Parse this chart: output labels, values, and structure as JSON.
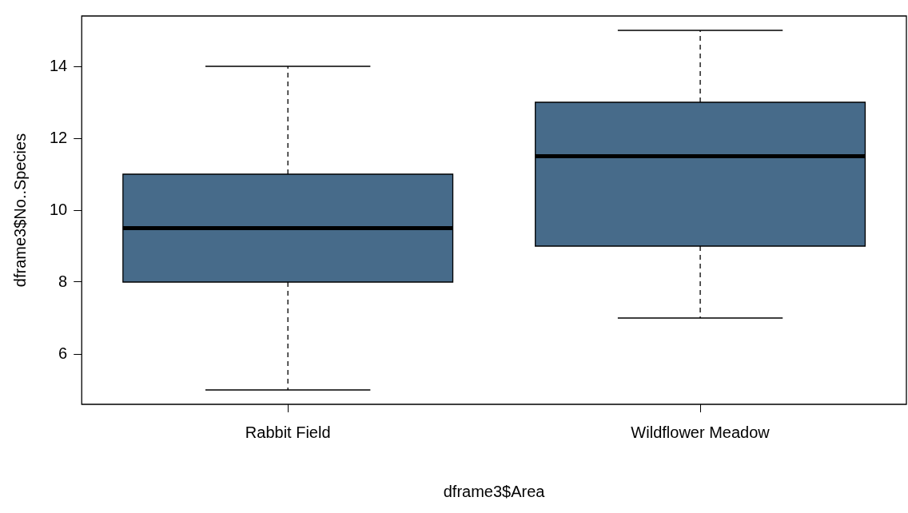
{
  "chart_data": {
    "type": "box",
    "xlabel": "dframe3$Area",
    "ylabel": "dframe3$No..Species",
    "categories": [
      "Rabbit Field",
      "Wildflower Meadow"
    ],
    "color": "#476b8a",
    "boxes": [
      {
        "low": 5,
        "q1": 8,
        "median": 9.5,
        "q3": 11,
        "high": 14
      },
      {
        "low": 7,
        "q1": 9,
        "median": 11.5,
        "q3": 13,
        "high": 15
      }
    ],
    "ylim": [
      4.6,
      15.4
    ],
    "yticks": [
      6,
      8,
      10,
      12,
      14
    ],
    "grid": false,
    "legend": false
  }
}
